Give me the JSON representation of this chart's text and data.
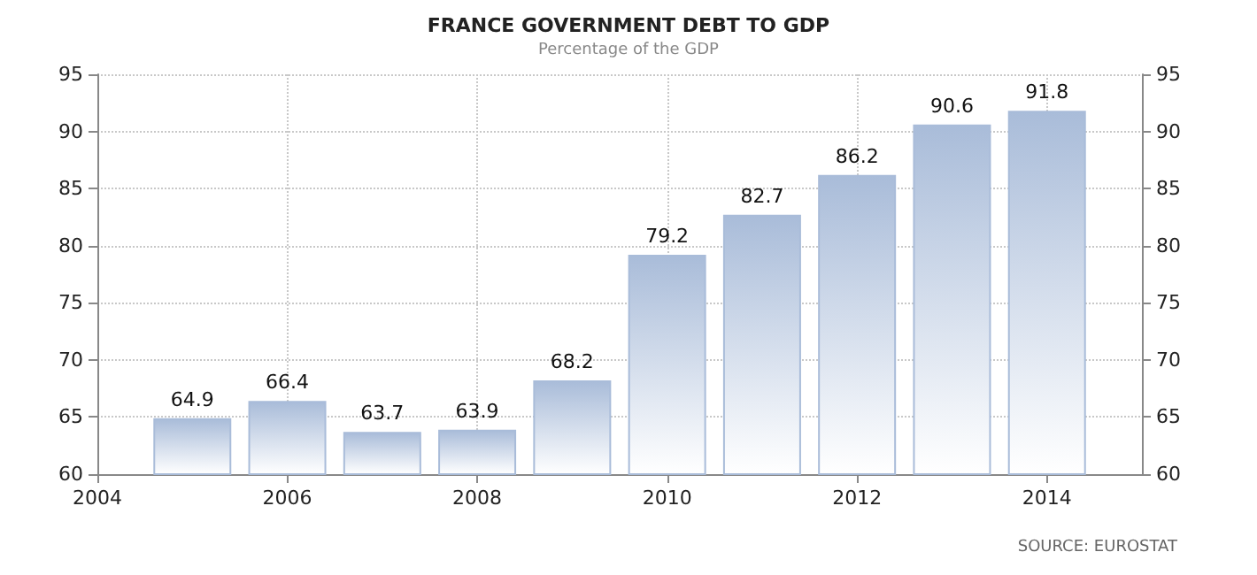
{
  "chart_data": {
    "type": "bar",
    "title": "FRANCE GOVERNMENT DEBT TO GDP",
    "subtitle": "Percentage of the GDP",
    "x": [
      2005,
      2006,
      2007,
      2008,
      2009,
      2010,
      2011,
      2012,
      2013,
      2014
    ],
    "values": [
      64.9,
      66.4,
      63.7,
      63.9,
      68.2,
      79.2,
      82.7,
      86.2,
      90.6,
      91.8
    ],
    "color": "#a9bcd9",
    "data_labels": true,
    "xlim": [
      2004,
      2015
    ],
    "xticks": [
      2004,
      2006,
      2008,
      2010,
      2012,
      2014
    ],
    "ylim": [
      60,
      95
    ],
    "yticks": [
      60,
      65,
      70,
      75,
      80,
      85,
      90,
      95
    ],
    "y2lim": [
      60,
      95
    ],
    "y2ticks": [
      60,
      65,
      70,
      75,
      80,
      85,
      90,
      95
    ],
    "grid": true,
    "annotations": [
      "SOURCE: EUROSTAT"
    ]
  }
}
